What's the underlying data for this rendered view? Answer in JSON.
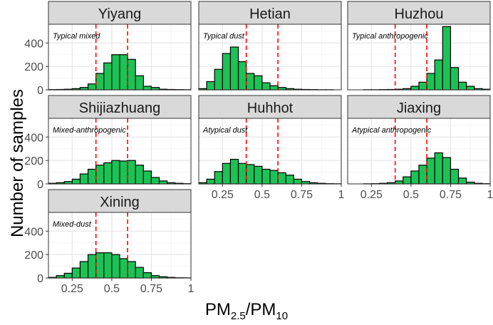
{
  "chart_data": {
    "type": "bar",
    "ylabel": "Number of samples",
    "xlabel": {
      "main_1": "PM",
      "sub_1": "2.5",
      "slash": "/",
      "main_2": "PM",
      "sub_2": "10"
    },
    "xlim": [
      0.1,
      1.0
    ],
    "ylim": [
      0,
      560
    ],
    "x_ticks": [
      0.25,
      0.5,
      0.75,
      1.0
    ],
    "x_tick_labels": [
      "0.25",
      "0.5",
      "0.75",
      "1"
    ],
    "y_ticks": [
      0,
      200,
      400
    ],
    "y_tick_labels": [
      "0",
      "200",
      "400"
    ],
    "reference_lines": [
      0.4,
      0.6
    ],
    "reference_line_color": "#ff0000",
    "bar_color": "#1bc356",
    "bar_edge_color": "#000000",
    "strip_color": "#d9d9d9",
    "bins": [
      0.125,
      0.175,
      0.225,
      0.275,
      0.325,
      0.375,
      0.425,
      0.475,
      0.525,
      0.575,
      0.625,
      0.675,
      0.725,
      0.775,
      0.825,
      0.875,
      0.925,
      0.975
    ],
    "bin_width": 0.05,
    "panels": [
      {
        "title": "Yiyang",
        "annotation": "Typical mixed",
        "values": [
          2,
          3,
          5,
          10,
          20,
          50,
          140,
          230,
          300,
          300,
          260,
          120,
          30,
          20,
          5,
          3,
          2,
          1
        ]
      },
      {
        "title": "Hetian",
        "annotation": "Typical dust",
        "values": [
          10,
          70,
          175,
          310,
          365,
          240,
          140,
          120,
          60,
          35,
          20,
          10,
          5,
          3,
          2,
          1,
          1,
          0
        ]
      },
      {
        "title": "Huzhou",
        "annotation": "Typical anthropogenic",
        "values": [
          0,
          0,
          1,
          1,
          2,
          3,
          5,
          10,
          30,
          65,
          140,
          255,
          540,
          190,
          65,
          30,
          10,
          5
        ]
      },
      {
        "title": "Shijiazhuang",
        "annotation": "Mixed-anthropogenic",
        "values": [
          5,
          10,
          20,
          40,
          85,
          125,
          160,
          180,
          200,
          195,
          200,
          160,
          110,
          55,
          25,
          10,
          5,
          2
        ]
      },
      {
        "title": "Huhhot",
        "annotation": "Atypical dust",
        "values": [
          10,
          40,
          105,
          175,
          210,
          175,
          165,
          150,
          125,
          115,
          95,
          75,
          40,
          20,
          10,
          5,
          2,
          1
        ]
      },
      {
        "title": "Jiaxing",
        "annotation": "Atypical anthropogenic",
        "values": [
          0,
          0,
          1,
          2,
          5,
          10,
          25,
          60,
          110,
          160,
          220,
          265,
          225,
          125,
          50,
          15,
          5,
          2
        ]
      },
      {
        "title": "Xining",
        "annotation": "Mixed-dust",
        "values": [
          5,
          20,
          40,
          85,
          140,
          200,
          215,
          215,
          200,
          165,
          140,
          90,
          45,
          20,
          10,
          5,
          2,
          1
        ]
      }
    ]
  }
}
